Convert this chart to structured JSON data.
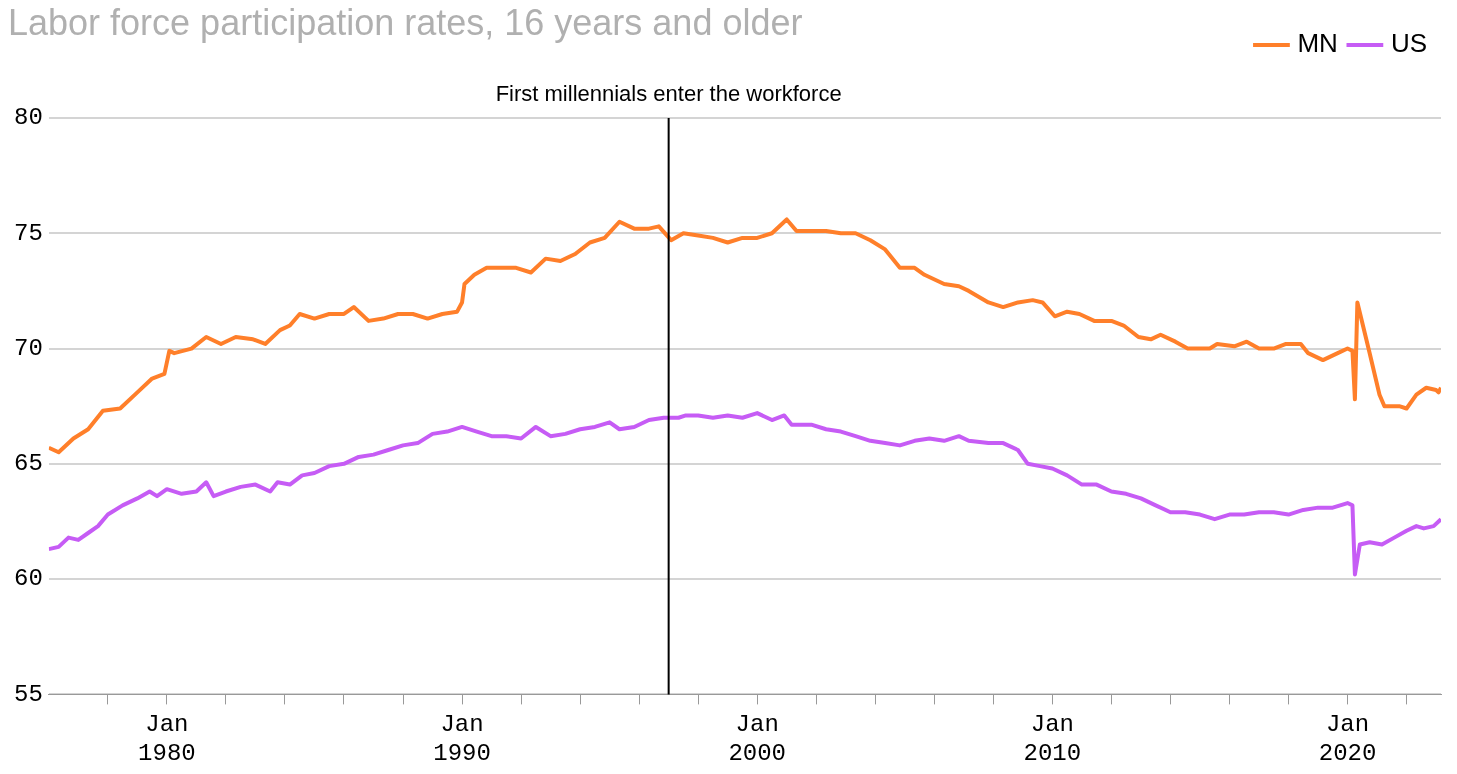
{
  "chart_data": {
    "type": "line",
    "title": "Labor force participation rates, 16 years and older",
    "xlim": [
      "1976-01",
      "2023-03"
    ],
    "xticks": [
      {
        "value": "1978-01",
        "label": null
      },
      {
        "value": "1980-01",
        "label": "Jan 1980"
      },
      {
        "value": "1982-01",
        "label": null
      },
      {
        "value": "1984-01",
        "label": null
      },
      {
        "value": "1986-01",
        "label": null
      },
      {
        "value": "1988-01",
        "label": null
      },
      {
        "value": "1990-01",
        "label": "Jan 1990"
      },
      {
        "value": "1992-01",
        "label": null
      },
      {
        "value": "1994-01",
        "label": null
      },
      {
        "value": "1996-01",
        "label": null
      },
      {
        "value": "1998-01",
        "label": null
      },
      {
        "value": "2000-01",
        "label": "Jan 2000"
      },
      {
        "value": "2002-01",
        "label": null
      },
      {
        "value": "2004-01",
        "label": null
      },
      {
        "value": "2006-01",
        "label": null
      },
      {
        "value": "2008-01",
        "label": null
      },
      {
        "value": "2010-01",
        "label": "Jan 2010"
      },
      {
        "value": "2012-01",
        "label": null
      },
      {
        "value": "2014-01",
        "label": null
      },
      {
        "value": "2016-01",
        "label": null
      },
      {
        "value": "2018-01",
        "label": null
      },
      {
        "value": "2020-01",
        "label": "Jan 2020"
      },
      {
        "value": "2022-01",
        "label": null
      }
    ],
    "ylim": [
      55,
      80
    ],
    "yticks": [
      55,
      60,
      65,
      70,
      75,
      80
    ],
    "grid": "y",
    "legend": "top right",
    "marker": "none",
    "line_style": "solid",
    "ref_lines": [
      {
        "axis": "x",
        "value": "1997-01",
        "label": "First millennials enter the workforce",
        "color": "#000000"
      }
    ],
    "series": [
      {
        "name": "MN",
        "color": "#ff7f2a",
        "x": [
          "1976-01",
          "1976-05",
          "1976-11",
          "1977-05",
          "1977-11",
          "1978-06",
          "1979-01",
          "1979-07",
          "1979-12",
          "1980-02",
          "1980-04",
          "1980-11",
          "1981-05",
          "1981-11",
          "1982-05",
          "1982-12",
          "1983-05",
          "1983-11",
          "1984-03",
          "1984-07",
          "1985-01",
          "1985-07",
          "1986-01",
          "1986-05",
          "1986-11",
          "1987-05",
          "1987-11",
          "1988-05",
          "1988-11",
          "1989-05",
          "1989-11",
          "1990-01",
          "1990-02",
          "1990-06",
          "1990-11",
          "1991-11",
          "1992-05",
          "1992-11",
          "1993-05",
          "1993-11",
          "1994-05",
          "1994-11",
          "1995-05",
          "1995-11",
          "1996-05",
          "1996-09",
          "1997-02",
          "1997-07",
          "1998-01",
          "1998-07",
          "1999-01",
          "1999-07",
          "2000-01",
          "2000-07",
          "2001-01",
          "2001-05",
          "2001-11",
          "2002-05",
          "2002-11",
          "2003-05",
          "2003-11",
          "2004-05",
          "2004-11",
          "2005-05",
          "2005-09",
          "2006-05",
          "2006-11",
          "2007-03",
          "2007-11",
          "2008-05",
          "2008-11",
          "2009-05",
          "2009-09",
          "2010-02",
          "2010-07",
          "2010-12",
          "2011-06",
          "2012-01",
          "2012-06",
          "2012-12",
          "2013-05",
          "2013-09",
          "2014-03",
          "2014-08",
          "2015-05",
          "2015-08",
          "2016-03",
          "2016-08",
          "2017-01",
          "2017-07",
          "2017-12",
          "2018-06",
          "2018-09",
          "2019-03",
          "2019-09",
          "2020-01",
          "2020-03",
          "2020-04",
          "2020-05",
          "2020-10",
          "2021-02",
          "2021-04",
          "2021-10",
          "2022-01",
          "2022-05",
          "2022-09",
          "2023-01",
          "2023-02",
          "2023-03"
        ],
        "values": [
          65.7,
          65.5,
          66.1,
          66.5,
          67.3,
          67.4,
          68.1,
          68.7,
          68.9,
          69.9,
          69.8,
          70.0,
          70.5,
          70.2,
          70.5,
          70.4,
          70.2,
          70.8,
          71.0,
          71.5,
          71.3,
          71.5,
          71.5,
          71.8,
          71.2,
          71.3,
          71.5,
          71.5,
          71.3,
          71.5,
          71.6,
          72.0,
          72.8,
          73.2,
          73.5,
          73.5,
          73.3,
          73.9,
          73.8,
          74.1,
          74.6,
          74.8,
          75.5,
          75.2,
          75.2,
          75.3,
          74.7,
          75.0,
          74.9,
          74.8,
          74.6,
          74.8,
          74.8,
          75.0,
          75.6,
          75.1,
          75.1,
          75.1,
          75.0,
          75.0,
          74.7,
          74.3,
          73.5,
          73.5,
          73.2,
          72.8,
          72.7,
          72.5,
          72.0,
          71.8,
          72.0,
          72.1,
          72.0,
          71.4,
          71.6,
          71.5,
          71.2,
          71.2,
          71.0,
          70.5,
          70.4,
          70.6,
          70.3,
          70.0,
          70.0,
          70.2,
          70.1,
          70.3,
          70.0,
          70.0,
          70.2,
          70.2,
          69.8,
          69.5,
          69.8,
          70.0,
          69.9,
          67.8,
          72.0,
          69.8,
          68.0,
          67.5,
          67.5,
          67.4,
          68.0,
          68.3,
          68.2,
          68.1,
          68.3
        ]
      },
      {
        "name": "US",
        "color": "#c65cf5",
        "x": [
          "1976-01",
          "1976-05",
          "1976-09",
          "1977-01",
          "1977-05",
          "1977-09",
          "1978-01",
          "1978-07",
          "1979-01",
          "1979-06",
          "1979-09",
          "1980-01",
          "1980-07",
          "1981-01",
          "1981-05",
          "1981-08",
          "1982-01",
          "1982-07",
          "1983-01",
          "1983-07",
          "1983-10",
          "1984-03",
          "1984-08",
          "1985-01",
          "1985-07",
          "1986-01",
          "1986-07",
          "1987-01",
          "1987-07",
          "1988-01",
          "1988-07",
          "1989-01",
          "1989-07",
          "1990-01",
          "1990-07",
          "1991-01",
          "1991-07",
          "1992-01",
          "1992-07",
          "1993-01",
          "1993-07",
          "1994-01",
          "1994-07",
          "1995-01",
          "1995-05",
          "1995-11",
          "1996-05",
          "1996-11",
          "1997-05",
          "1997-08",
          "1998-01",
          "1998-07",
          "1999-01",
          "1999-07",
          "2000-01",
          "2000-07",
          "2000-12",
          "2001-03",
          "2001-11",
          "2002-05",
          "2002-11",
          "2003-05",
          "2003-11",
          "2004-05",
          "2004-11",
          "2005-05",
          "2005-11",
          "2006-05",
          "2006-11",
          "2007-03",
          "2007-11",
          "2008-05",
          "2008-11",
          "2009-03",
          "2009-08",
          "2010-01",
          "2010-07",
          "2011-01",
          "2011-07",
          "2012-01",
          "2012-07",
          "2013-01",
          "2013-07",
          "2014-01",
          "2014-07",
          "2015-01",
          "2015-07",
          "2016-01",
          "2016-07",
          "2017-01",
          "2017-07",
          "2018-01",
          "2018-07",
          "2019-01",
          "2019-07",
          "2020-01",
          "2020-03",
          "2020-04",
          "2020-06",
          "2020-10",
          "2021-03",
          "2021-08",
          "2022-01",
          "2022-05",
          "2022-08",
          "2022-12",
          "2023-03"
        ],
        "values": [
          61.3,
          61.4,
          61.8,
          61.7,
          62.0,
          62.3,
          62.8,
          63.2,
          63.5,
          63.8,
          63.6,
          63.9,
          63.7,
          63.8,
          64.2,
          63.6,
          63.8,
          64.0,
          64.1,
          63.8,
          64.2,
          64.1,
          64.5,
          64.6,
          64.9,
          65.0,
          65.3,
          65.4,
          65.6,
          65.8,
          65.9,
          66.3,
          66.4,
          66.6,
          66.4,
          66.2,
          66.2,
          66.1,
          66.6,
          66.2,
          66.3,
          66.5,
          66.6,
          66.8,
          66.5,
          66.6,
          66.9,
          67.0,
          67.0,
          67.1,
          67.1,
          67.0,
          67.1,
          67.0,
          67.2,
          66.9,
          67.1,
          66.7,
          66.7,
          66.5,
          66.4,
          66.2,
          66.0,
          65.9,
          65.8,
          66.0,
          66.1,
          66.0,
          66.2,
          66.0,
          65.9,
          65.9,
          65.6,
          65.0,
          64.9,
          64.8,
          64.5,
          64.1,
          64.1,
          63.8,
          63.7,
          63.5,
          63.2,
          62.9,
          62.9,
          62.8,
          62.6,
          62.8,
          62.8,
          62.9,
          62.9,
          62.8,
          63.0,
          63.1,
          63.1,
          63.3,
          63.2,
          60.2,
          61.5,
          61.6,
          61.5,
          61.8,
          62.1,
          62.3,
          62.2,
          62.3,
          62.6
        ]
      }
    ]
  }
}
